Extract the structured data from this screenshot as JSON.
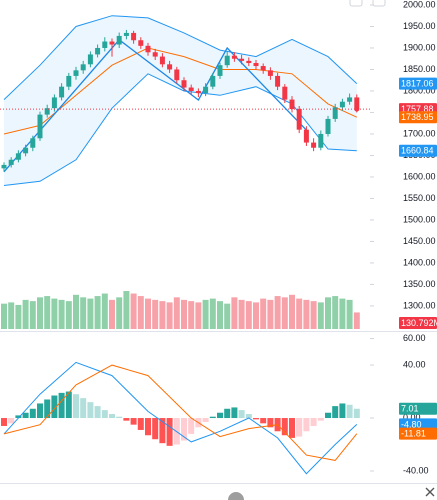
{
  "chart_data": [
    {
      "type": "candlestick",
      "up_color": "#26a69a",
      "down_color": "#f23645",
      "candles": [
        [
          1620,
          1634,
          1612,
          1628
        ],
        [
          1628,
          1646,
          1622,
          1640
        ],
        [
          1640,
          1662,
          1634,
          1655
        ],
        [
          1655,
          1675,
          1648,
          1668
        ],
        [
          1668,
          1696,
          1660,
          1690
        ],
        [
          1690,
          1752,
          1684,
          1745
        ],
        [
          1745,
          1768,
          1738,
          1760
        ],
        [
          1760,
          1792,
          1752,
          1785
        ],
        [
          1785,
          1818,
          1778,
          1810
        ],
        [
          1810,
          1842,
          1802,
          1835
        ],
        [
          1835,
          1856,
          1826,
          1848
        ],
        [
          1848,
          1870,
          1840,
          1862
        ],
        [
          1862,
          1892,
          1855,
          1885
        ],
        [
          1885,
          1908,
          1878,
          1900
        ],
        [
          1900,
          1925,
          1892,
          1915
        ],
        [
          1915,
          1922,
          1880,
          1908
        ],
        [
          1908,
          1936,
          1900,
          1928
        ],
        [
          1928,
          1942,
          1920,
          1935
        ],
        [
          1935,
          1940,
          1910,
          1918
        ],
        [
          1918,
          1925,
          1898,
          1905
        ],
        [
          1905,
          1912,
          1882,
          1890
        ],
        [
          1890,
          1898,
          1872,
          1880
        ],
        [
          1880,
          1888,
          1855,
          1862
        ],
        [
          1862,
          1870,
          1842,
          1850
        ],
        [
          1850,
          1856,
          1818,
          1825
        ],
        [
          1825,
          1832,
          1800,
          1808
        ],
        [
          1808,
          1815,
          1792,
          1800
        ],
        [
          1800,
          1806,
          1786,
          1795
        ],
        [
          1795,
          1818,
          1788,
          1810
        ],
        [
          1810,
          1842,
          1804,
          1835
        ],
        [
          1835,
          1866,
          1828,
          1860
        ],
        [
          1860,
          1892,
          1854,
          1882
        ],
        [
          1882,
          1890,
          1868,
          1875
        ],
        [
          1875,
          1884,
          1862,
          1870
        ],
        [
          1870,
          1878,
          1858,
          1865
        ],
        [
          1865,
          1872,
          1850,
          1858
        ],
        [
          1858,
          1864,
          1840,
          1848
        ],
        [
          1848,
          1855,
          1826,
          1835
        ],
        [
          1835,
          1842,
          1802,
          1810
        ],
        [
          1810,
          1816,
          1772,
          1780
        ],
        [
          1780,
          1788,
          1750,
          1758
        ],
        [
          1758,
          1765,
          1702,
          1710
        ],
        [
          1710,
          1718,
          1672,
          1680
        ],
        [
          1680,
          1690,
          1660,
          1668
        ],
        [
          1668,
          1708,
          1662,
          1700
        ],
        [
          1700,
          1742,
          1694,
          1735
        ],
        [
          1735,
          1770,
          1728,
          1762
        ],
        [
          1762,
          1782,
          1754,
          1775
        ],
        [
          1775,
          1794,
          1768,
          1785
        ],
        [
          1785,
          1792,
          1750,
          1757.88
        ]
      ],
      "bands": {
        "fill": "#e3f2fd",
        "upper": {
          "color": "#2196f3",
          "x": [
            0,
            5,
            10,
            15,
            20,
            25,
            30,
            35,
            40,
            45,
            49
          ],
          "values": [
            1780,
            1860,
            1950,
            1975,
            1970,
            1935,
            1895,
            1880,
            1920,
            1880,
            1817.06
          ]
        },
        "middle": {
          "color": "#ff6d00",
          "x": [
            0,
            5,
            10,
            15,
            20,
            25,
            30,
            35,
            40,
            45,
            49
          ],
          "values": [
            1700,
            1720,
            1790,
            1860,
            1900,
            1880,
            1850,
            1850,
            1840,
            1770,
            1738.95
          ]
        },
        "lower": {
          "color": "#2196f3",
          "x": [
            0,
            5,
            10,
            15,
            20,
            25,
            30,
            35,
            40,
            45,
            49
          ],
          "values": [
            1580,
            1590,
            1640,
            1760,
            1840,
            1800,
            1790,
            1810,
            1770,
            1665,
            1660.84
          ]
        }
      },
      "zigzag": {
        "color": "#1e88e5",
        "x": [
          0,
          16,
          27,
          31,
          42
        ],
        "values": [
          1612,
          1919,
          1779,
          1900,
          1709
        ]
      },
      "volume": {
        "up_color": "#8fd0a8",
        "down_color": "#f7a1a8",
        "values": [
          200,
          210,
          190,
          230,
          220,
          250,
          260,
          240,
          230,
          220,
          270,
          250,
          240,
          260,
          280,
          230,
          250,
          300,
          280,
          260,
          240,
          230,
          220,
          210,
          250,
          230,
          220,
          210,
          230,
          240,
          220,
          200,
          250,
          230,
          220,
          210,
          240,
          230,
          260,
          250,
          270,
          240,
          230,
          220,
          210,
          250,
          260,
          240,
          230,
          130.792
        ],
        "value_labels": [
          null,
          null,
          null,
          null,
          null,
          null,
          null,
          null,
          null,
          null,
          null,
          null,
          null,
          null,
          null,
          null,
          null,
          null,
          null,
          null,
          null,
          null,
          null,
          null,
          null,
          null,
          null,
          null,
          null,
          null,
          null,
          null,
          null,
          null,
          null,
          null,
          null,
          null,
          null,
          null,
          null,
          null,
          null,
          null,
          null,
          null,
          null,
          null,
          null,
          "130.792M"
        ]
      },
      "ylim": [
        1244,
        2011.6
      ],
      "yticks": [
        {
          "value": 1300,
          "label": "1300.00"
        },
        {
          "value": 1350,
          "label": "1350.00"
        },
        {
          "value": 1400,
          "label": "1400.00"
        },
        {
          "value": 1450,
          "label": "1450.00"
        },
        {
          "value": 1500,
          "label": "1500.00"
        },
        {
          "value": 1550,
          "label": "1550.00"
        },
        {
          "value": 1600,
          "label": "1600.00"
        },
        {
          "value": 1650,
          "label": "1650.00"
        },
        {
          "value": 1700,
          "label": "1700.00"
        },
        {
          "value": 1750,
          "label": "1750.00"
        },
        {
          "value": 1800,
          "label": "1800.00"
        },
        {
          "value": 1850,
          "label": "1850.00"
        },
        {
          "value": 1900,
          "label": "1900.00"
        },
        {
          "value": 1950,
          "label": "1950.00"
        },
        {
          "value": 2000,
          "label": "2000.00"
        }
      ]
    },
    {
      "type": "macd",
      "histogram": {
        "values": [
          -6,
          -4,
          2,
          4,
          7,
          11,
          14,
          17,
          19,
          20,
          18,
          15,
          12,
          9,
          6,
          3,
          1,
          -2,
          -5,
          -9,
          -13,
          -16,
          -19,
          -21,
          -20,
          -17,
          -12,
          -7,
          -3,
          1,
          4,
          7,
          8,
          6,
          3,
          -1,
          -4,
          -7,
          -10,
          -13,
          -15,
          -14,
          -10,
          -6,
          -2,
          4,
          9,
          11,
          10,
          7.01
        ],
        "colors": {
          "pos_up": "#26a69a",
          "pos_down": "#b2dfdb",
          "neg_down": "#ff5252",
          "neg_up": "#ffcdd2"
        }
      },
      "macd": {
        "color": "#2196f3",
        "x": [
          0,
          5,
          10,
          15,
          20,
          26,
          30,
          34,
          38,
          42,
          46,
          49
        ],
        "values": [
          -12,
          18,
          42,
          32,
          5,
          -18,
          -10,
          0,
          -15,
          -42,
          -20,
          -4.8
        ],
        "value_labels": [
          null,
          null,
          null,
          null,
          null,
          null,
          null,
          null,
          null,
          null,
          null,
          "-4.80"
        ]
      },
      "signal": {
        "color": "#ff6d00",
        "x": [
          0,
          5,
          10,
          15,
          20,
          26,
          30,
          34,
          38,
          42,
          46,
          49
        ],
        "values": [
          -12,
          -5,
          25,
          40,
          32,
          0,
          -14,
          -8,
          -5,
          -28,
          -32,
          -11.81
        ]
      },
      "ylim": [
        -48.3,
        64.2
      ],
      "yticks": [
        {
          "value": -40,
          "label": "-40.00"
        },
        {
          "value": 0,
          "label": "0.00"
        },
        {
          "value": 40,
          "label": "40.00"
        },
        {
          "value": 60,
          "label": "60.00"
        }
      ]
    }
  ]
}
